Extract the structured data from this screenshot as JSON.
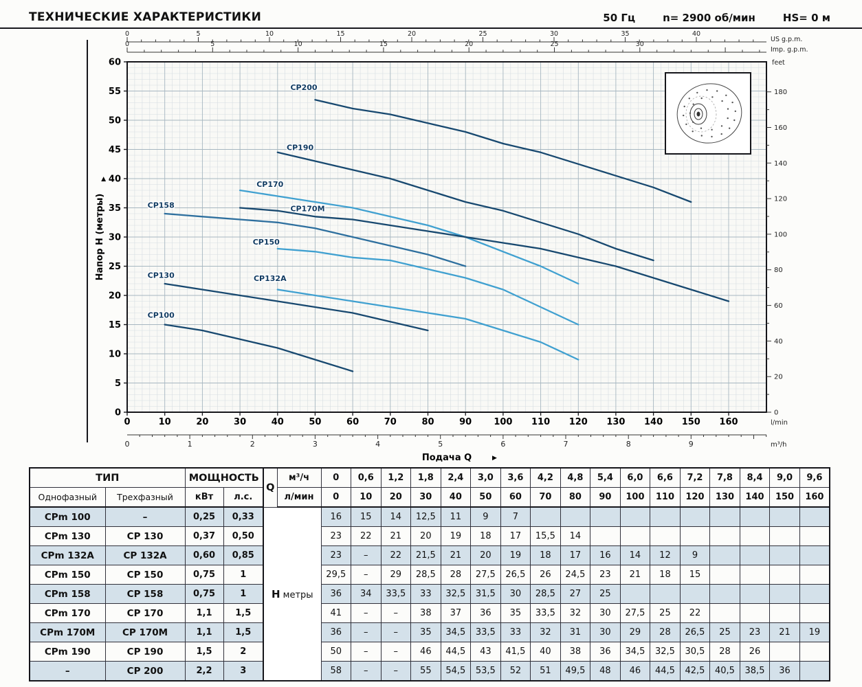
{
  "header": {
    "title": "ТЕХНИЧЕСКИЕ ХАРАКТЕРИСТИКИ",
    "freq": "50 Гц",
    "speed": "n= 2900 об/мин",
    "hs": "HS= 0 м"
  },
  "chart_data": {
    "type": "line",
    "title": "",
    "x_axis": {
      "label": "Подача Q",
      "range_lmin": [
        0,
        170
      ],
      "scales": {
        "lmin": {
          "unit": "l/min",
          "ticks": [
            0,
            10,
            20,
            30,
            40,
            50,
            60,
            70,
            80,
            90,
            100,
            110,
            120,
            130,
            140,
            150,
            160
          ]
        },
        "m3h": {
          "unit": "m³/h",
          "lmin_per_unit": 16.6667,
          "ticks": [
            0,
            1,
            2,
            3,
            4,
            5,
            6,
            7,
            8,
            9
          ]
        },
        "us_gpm": {
          "unit": "US g.p.m.",
          "lmin_per_unit": 3.785,
          "ticks": [
            0,
            5,
            10,
            15,
            20,
            25,
            30,
            35,
            40
          ]
        },
        "imp_gpm": {
          "unit": "Imp. g.p.m.",
          "lmin_per_unit": 4.546,
          "ticks": [
            0,
            5,
            10,
            15,
            20,
            25,
            30
          ]
        }
      }
    },
    "y_axis": {
      "label": "Напор H (метры)",
      "range_m": [
        0,
        60
      ],
      "scales": {
        "m": {
          "ticks": [
            0,
            5,
            10,
            15,
            20,
            25,
            30,
            35,
            40,
            45,
            50,
            55,
            60
          ]
        },
        "feet": {
          "unit": "feet",
          "m_per_unit": 0.3048,
          "ticks": [
            0,
            20,
            40,
            60,
            80,
            100,
            120,
            140,
            160,
            180
          ]
        }
      }
    },
    "grid": true,
    "label_color": "#123c63",
    "series": [
      {
        "name": "CP200",
        "color": "#17486f",
        "label_pos": [
          47,
          55.2
        ],
        "points": [
          [
            50,
            53.5
          ],
          [
            60,
            52
          ],
          [
            70,
            51
          ],
          [
            80,
            49.5
          ],
          [
            90,
            48
          ],
          [
            100,
            46
          ],
          [
            110,
            44.5
          ],
          [
            120,
            42.5
          ],
          [
            130,
            40.5
          ],
          [
            140,
            38.5
          ],
          [
            150,
            36
          ]
        ]
      },
      {
        "name": "CP190",
        "color": "#17486f",
        "label_pos": [
          46,
          44.9
        ],
        "points": [
          [
            40,
            44.5
          ],
          [
            50,
            43
          ],
          [
            60,
            41.5
          ],
          [
            70,
            40
          ],
          [
            80,
            38
          ],
          [
            90,
            36
          ],
          [
            100,
            34.5
          ],
          [
            110,
            32.5
          ],
          [
            120,
            30.5
          ],
          [
            130,
            28
          ],
          [
            140,
            26
          ]
        ]
      },
      {
        "name": "CP170",
        "color": "#3fa0d0",
        "label_pos": [
          38,
          38.6
        ],
        "points": [
          [
            30,
            38
          ],
          [
            40,
            37
          ],
          [
            50,
            36
          ],
          [
            60,
            35
          ],
          [
            70,
            33.5
          ],
          [
            80,
            32
          ],
          [
            90,
            30
          ],
          [
            100,
            27.5
          ],
          [
            110,
            25
          ],
          [
            120,
            22
          ]
        ]
      },
      {
        "name": "CP170M",
        "color": "#17486f",
        "label_pos": [
          48,
          34.4
        ],
        "points": [
          [
            30,
            35
          ],
          [
            40,
            34.5
          ],
          [
            50,
            33.5
          ],
          [
            60,
            33
          ],
          [
            70,
            32
          ],
          [
            80,
            31
          ],
          [
            90,
            30
          ],
          [
            100,
            29
          ],
          [
            110,
            28
          ],
          [
            120,
            26.5
          ],
          [
            130,
            25
          ],
          [
            140,
            23
          ],
          [
            150,
            21
          ],
          [
            160,
            19
          ]
        ]
      },
      {
        "name": "CP158",
        "color": "#2d6f9e",
        "label_pos": [
          9,
          35.0
        ],
        "points": [
          [
            10,
            34
          ],
          [
            20,
            33.5
          ],
          [
            30,
            33
          ],
          [
            40,
            32.5
          ],
          [
            50,
            31.5
          ],
          [
            60,
            30
          ],
          [
            70,
            28.5
          ],
          [
            80,
            27
          ],
          [
            90,
            25
          ]
        ]
      },
      {
        "name": "CP150",
        "color": "#3fa0d0",
        "label_pos": [
          37,
          28.7
        ],
        "points": [
          [
            40,
            28
          ],
          [
            50,
            27.5
          ],
          [
            60,
            26.5
          ],
          [
            70,
            26
          ],
          [
            80,
            24.5
          ],
          [
            90,
            23
          ],
          [
            100,
            21
          ],
          [
            110,
            18
          ],
          [
            120,
            15
          ]
        ]
      },
      {
        "name": "CP132A",
        "color": "#3fa0d0",
        "label_pos": [
          38,
          22.5
        ],
        "points": [
          [
            40,
            21
          ],
          [
            50,
            20
          ],
          [
            60,
            19
          ],
          [
            70,
            18
          ],
          [
            80,
            17
          ],
          [
            90,
            16
          ],
          [
            100,
            14
          ],
          [
            110,
            12
          ],
          [
            120,
            9
          ]
        ]
      },
      {
        "name": "CP130",
        "color": "#17486f",
        "label_pos": [
          9,
          23.0
        ],
        "points": [
          [
            10,
            22
          ],
          [
            20,
            21
          ],
          [
            30,
            20
          ],
          [
            40,
            19
          ],
          [
            50,
            18
          ],
          [
            60,
            17
          ],
          [
            70,
            15.5
          ],
          [
            80,
            14
          ]
        ]
      },
      {
        "name": "CP100",
        "color": "#17486f",
        "label_pos": [
          9,
          16.2
        ],
        "points": [
          [
            10,
            15
          ],
          [
            20,
            14
          ],
          [
            30,
            12.5
          ],
          [
            40,
            11
          ],
          [
            50,
            9
          ],
          [
            60,
            7
          ]
        ]
      }
    ]
  },
  "table": {
    "header": {
      "tip": "ТИП",
      "power": "МОЩНОСТЬ",
      "q": "Q",
      "single": "Однофазный",
      "three": "Трехфазный",
      "kw": "кВт",
      "hp": "л.с.",
      "m3h": "м³/ч",
      "lmin": "л/мин",
      "h_label_main": "H",
      "h_label_sub": "метры",
      "m3h_values": [
        "0",
        "0,6",
        "1,2",
        "1,8",
        "2,4",
        "3,0",
        "3,6",
        "4,2",
        "4,8",
        "5,4",
        "6,0",
        "6,6",
        "7,2",
        "7,8",
        "8,4",
        "9,0",
        "9,6"
      ],
      "lmin_values": [
        "0",
        "10",
        "20",
        "30",
        "40",
        "50",
        "60",
        "70",
        "80",
        "90",
        "100",
        "110",
        "120",
        "130",
        "140",
        "150",
        "160"
      ]
    },
    "rows": [
      {
        "single": "CPm 100",
        "three": "–",
        "kw": "0,25",
        "hp": "0,33",
        "h": [
          "16",
          "15",
          "14",
          "12,5",
          "11",
          "9",
          "7",
          "",
          "",
          "",
          "",
          "",
          "",
          "",
          "",
          "",
          ""
        ]
      },
      {
        "single": "CPm 130",
        "three": "CP 130",
        "kw": "0,37",
        "hp": "0,50",
        "h": [
          "23",
          "22",
          "21",
          "20",
          "19",
          "18",
          "17",
          "15,5",
          "14",
          "",
          "",
          "",
          "",
          "",
          "",
          "",
          ""
        ]
      },
      {
        "single": "CPm 132A",
        "three": "CP 132A",
        "kw": "0,60",
        "hp": "0,85",
        "h": [
          "23",
          "–",
          "22",
          "21,5",
          "21",
          "20",
          "19",
          "18",
          "17",
          "16",
          "14",
          "12",
          "9",
          "",
          "",
          "",
          ""
        ]
      },
      {
        "single": "CPm 150",
        "three": "CP 150",
        "kw": "0,75",
        "hp": "1",
        "h": [
          "29,5",
          "–",
          "29",
          "28,5",
          "28",
          "27,5",
          "26,5",
          "26",
          "24,5",
          "23",
          "21",
          "18",
          "15",
          "",
          "",
          "",
          ""
        ]
      },
      {
        "single": "CPm 158",
        "three": "CP 158",
        "kw": "0,75",
        "hp": "1",
        "h": [
          "36",
          "34",
          "33,5",
          "33",
          "32,5",
          "31,5",
          "30",
          "28,5",
          "27",
          "25",
          "",
          "",
          "",
          "",
          "",
          "",
          ""
        ]
      },
      {
        "single": "CPm 170",
        "three": "CP 170",
        "kw": "1,1",
        "hp": "1,5",
        "h": [
          "41",
          "–",
          "–",
          "38",
          "37",
          "36",
          "35",
          "33,5",
          "32",
          "30",
          "27,5",
          "25",
          "22",
          "",
          "",
          "",
          ""
        ]
      },
      {
        "single": "CPm 170M",
        "three": "CP 170M",
        "kw": "1,1",
        "hp": "1,5",
        "h": [
          "36",
          "–",
          "–",
          "35",
          "34,5",
          "33,5",
          "33",
          "32",
          "31",
          "30",
          "29",
          "28",
          "26,5",
          "25",
          "23",
          "21",
          "19"
        ]
      },
      {
        "single": "CPm 190",
        "three": "CP 190",
        "kw": "1,5",
        "hp": "2",
        "h": [
          "50",
          "–",
          "–",
          "46",
          "44,5",
          "43",
          "41,5",
          "40",
          "38",
          "36",
          "34,5",
          "32,5",
          "30,5",
          "28",
          "26",
          "",
          ""
        ]
      },
      {
        "single": "–",
        "three": "CP 200",
        "kw": "2,2",
        "hp": "3",
        "h": [
          "58",
          "–",
          "–",
          "55",
          "54,5",
          "53,5",
          "52",
          "51",
          "49,5",
          "48",
          "46",
          "44,5",
          "42,5",
          "40,5",
          "38,5",
          "36",
          ""
        ]
      }
    ]
  }
}
